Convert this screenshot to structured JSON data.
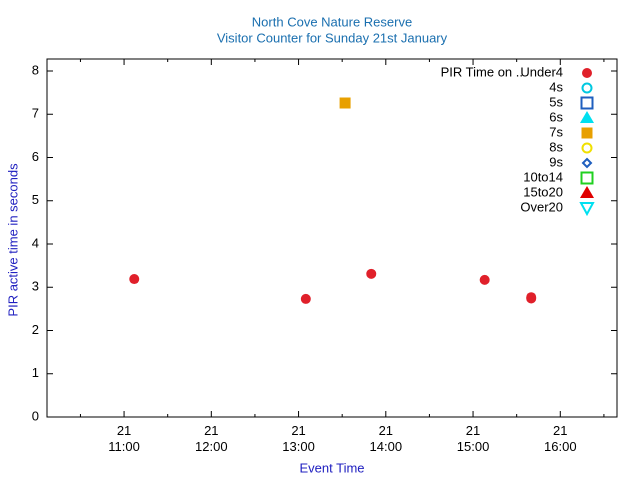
{
  "chart_data": {
    "type": "scatter",
    "title": "North Cove Nature Reserve",
    "subtitle": "Visitor Counter for Sunday 21st January",
    "x_label": "Event Time",
    "y_label": "PIR active time in seconds",
    "legend_title": "PIR Time on ..",
    "legend_position": "top-right",
    "xlim": [
      "21 10:07",
      "21 16:39"
    ],
    "xticks": [
      "21 11:00",
      "21 12:00",
      "21 13:00",
      "21 14:00",
      "21 15:00",
      "21 16:00"
    ],
    "ylim": [
      0,
      8
    ],
    "yticks": [
      0,
      1,
      2,
      3,
      4,
      5,
      6,
      7,
      8
    ],
    "series": [
      {
        "name": "Under4",
        "color": "#e0202a",
        "marker": "circle",
        "filled": true,
        "x": [
          "21 11:07",
          "21 13:05",
          "21 13:50",
          "21 15:08",
          "21 15:40",
          "21 15:40"
        ],
        "values": [
          3.19,
          2.73,
          3.31,
          3.17,
          2.77,
          2.74
        ]
      },
      {
        "name": "4s",
        "color": "#00c8e0",
        "marker": "circle",
        "filled": false,
        "x": [],
        "values": []
      },
      {
        "name": "5s",
        "color": "#1f5fbf",
        "marker": "square",
        "filled": false,
        "x": [],
        "values": []
      },
      {
        "name": "6s",
        "color": "#00e0f0",
        "marker": "triangle",
        "filled": true,
        "x": [],
        "values": []
      },
      {
        "name": "7s",
        "color": "#e8a000",
        "marker": "square",
        "filled": true,
        "x": [
          "21 13:32"
        ],
        "values": [
          7.26
        ]
      },
      {
        "name": "8s",
        "color": "#f0e000",
        "marker": "circle",
        "filled": false,
        "x": [],
        "values": []
      },
      {
        "name": "9s",
        "color": "#1f5fbf",
        "marker": "diamond",
        "filled": false,
        "x": [],
        "values": []
      },
      {
        "name": "10to14",
        "color": "#20d020",
        "marker": "square",
        "filled": false,
        "x": [],
        "values": []
      },
      {
        "name": "15to20",
        "color": "#e00000",
        "marker": "triangle",
        "filled": true,
        "x": [],
        "values": []
      },
      {
        "name": "Over20",
        "color": "#00e0f0",
        "marker": "triangle-down",
        "filled": false,
        "x": [],
        "values": []
      }
    ]
  }
}
